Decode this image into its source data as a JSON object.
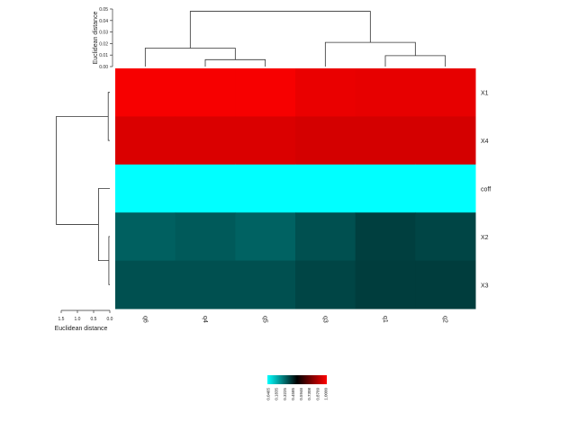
{
  "chart_data": {
    "type": "heatmap",
    "columns": [
      "q6",
      "q4",
      "q5",
      "q3",
      "q1",
      "q2"
    ],
    "rows": [
      "X1",
      "X4",
      "coff",
      "X2",
      "X3"
    ],
    "values": [
      [
        0.985,
        0.985,
        0.985,
        0.96,
        0.955,
        0.955
      ],
      [
        0.93,
        0.93,
        0.93,
        0.92,
        0.92,
        0.92
      ],
      [
        0.0465,
        0.0465,
        0.0465,
        0.0465,
        0.0465,
        0.0465
      ],
      [
        0.345,
        0.355,
        0.34,
        0.375,
        0.405,
        0.395
      ],
      [
        0.375,
        0.375,
        0.375,
        0.395,
        0.41,
        0.41
      ]
    ],
    "row_axis_label": "Euclidean distance",
    "row_axis_ticks": [
      "1.5",
      "1.0",
      "0.5",
      "0.0"
    ],
    "col_axis_label": "Euclidean distance",
    "col_axis_ticks": [
      "0.00",
      "0.01",
      "0.02",
      "0.03",
      "0.04",
      "0.05"
    ],
    "colorkey": {
      "labels": [
        "0.0465",
        "0.1835",
        "0.3225",
        "0.4585",
        "0.5946",
        "0.7308",
        "0.8709",
        "1.0000"
      ],
      "stops": [
        "#00ffff",
        "#008080",
        "#000000",
        "#800000",
        "#ff0000"
      ]
    },
    "row_dendrogram": [
      {
        "a": 0,
        "b": 1,
        "h": 0.05
      },
      {
        "a": 3,
        "b": 4,
        "h": 0.03
      },
      {
        "a": 2,
        "b": 6,
        "h": 0.35
      },
      {
        "a": 5,
        "b": 7,
        "h": 1.65
      }
    ],
    "col_dendrogram": [
      {
        "a": 4,
        "b": 5,
        "h": 0.0095
      },
      {
        "a": 1,
        "b": 2,
        "h": 0.006
      },
      {
        "a": 0,
        "b": 7,
        "h": 0.016
      },
      {
        "a": 3,
        "b": 6,
        "h": 0.021
      },
      {
        "a": 8,
        "b": 9,
        "h": 0.048
      }
    ]
  }
}
